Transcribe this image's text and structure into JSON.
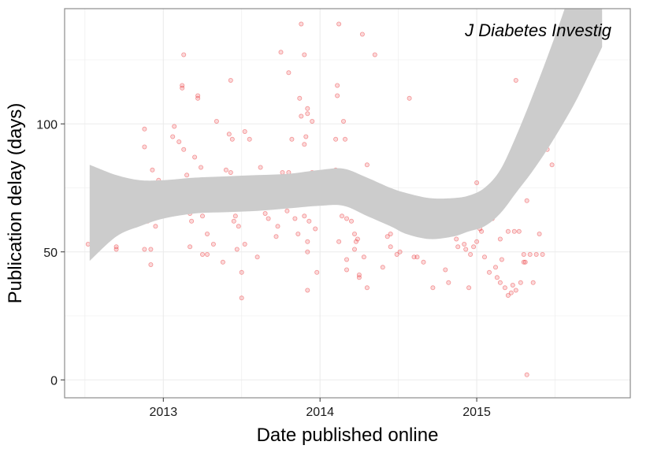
{
  "chart_data": {
    "type": "scatter",
    "annotation": "J Diabetes Investig",
    "xlabel": "Date published online",
    "ylabel": "Publication delay (days)",
    "xlim": [
      2012.37,
      2015.98
    ],
    "ylim": [
      -7,
      145
    ],
    "x_ticks": [
      {
        "value": 2013,
        "label": "2013"
      },
      {
        "value": 2014,
        "label": "2014"
      },
      {
        "value": 2015,
        "label": "2015"
      }
    ],
    "y_ticks": [
      {
        "value": 0,
        "label": "0"
      },
      {
        "value": 50,
        "label": "50"
      },
      {
        "value": 100,
        "label": "100"
      }
    ],
    "grid": true,
    "colors": {
      "points": "#e8272a",
      "ribbon": "#cccccc",
      "grid": "#ebebeb",
      "panel_border": "#8c8c8c"
    },
    "series": [
      {
        "type": "scatter",
        "points": [
          [
            2012.52,
            53
          ],
          [
            2012.55,
            56
          ],
          [
            2012.58,
            59
          ],
          [
            2012.6,
            68
          ],
          [
            2012.64,
            57
          ],
          [
            2012.65,
            62
          ],
          [
            2012.67,
            63
          ],
          [
            2012.7,
            52
          ],
          [
            2012.7,
            51
          ],
          [
            2012.72,
            75
          ],
          [
            2012.76,
            60
          ],
          [
            2012.79,
            68
          ],
          [
            2012.63,
            78
          ],
          [
            2012.66,
            79
          ],
          [
            2012.83,
            77
          ],
          [
            2012.85,
            75
          ],
          [
            2012.88,
            75
          ],
          [
            2012.88,
            91
          ],
          [
            2012.88,
            98
          ],
          [
            2012.9,
            76
          ],
          [
            2012.9,
            62
          ],
          [
            2012.88,
            51
          ],
          [
            2012.92,
            51
          ],
          [
            2012.92,
            45
          ],
          [
            2012.93,
            82
          ],
          [
            2012.95,
            60
          ],
          [
            2012.97,
            78
          ],
          [
            2012.97,
            70
          ],
          [
            2013.06,
            95
          ],
          [
            2013.07,
            99
          ],
          [
            2013.1,
            93
          ],
          [
            2013.12,
            115
          ],
          [
            2013.12,
            114
          ],
          [
            2013.13,
            90
          ],
          [
            2013.13,
            127
          ],
          [
            2013.15,
            80
          ],
          [
            2013.15,
            72
          ],
          [
            2013.15,
            70
          ],
          [
            2013.17,
            65
          ],
          [
            2013.17,
            52
          ],
          [
            2013.18,
            62
          ],
          [
            2013.2,
            87
          ],
          [
            2013.22,
            111
          ],
          [
            2013.22,
            110
          ],
          [
            2013.24,
            83
          ],
          [
            2013.25,
            64
          ],
          [
            2013.25,
            49
          ],
          [
            2013.28,
            57
          ],
          [
            2013.28,
            49
          ],
          [
            2013.3,
            74
          ],
          [
            2013.32,
            53
          ],
          [
            2013.33,
            73
          ],
          [
            2013.34,
            101
          ],
          [
            2013.35,
            78
          ],
          [
            2013.36,
            67
          ],
          [
            2013.38,
            75
          ],
          [
            2013.38,
            46
          ],
          [
            2013.4,
            82
          ],
          [
            2013.42,
            96
          ],
          [
            2013.42,
            69
          ],
          [
            2013.43,
            117
          ],
          [
            2013.43,
            81
          ],
          [
            2013.44,
            94
          ],
          [
            2013.45,
            74
          ],
          [
            2013.45,
            62
          ],
          [
            2013.46,
            64
          ],
          [
            2013.47,
            51
          ],
          [
            2013.48,
            60
          ],
          [
            2013.5,
            42
          ],
          [
            2013.5,
            32
          ],
          [
            2013.52,
            97
          ],
          [
            2013.52,
            53
          ],
          [
            2013.55,
            94
          ],
          [
            2013.57,
            76
          ],
          [
            2013.58,
            67
          ],
          [
            2013.6,
            48
          ],
          [
            2013.62,
            83
          ],
          [
            2013.65,
            65
          ],
          [
            2013.67,
            63
          ],
          [
            2013.68,
            70
          ],
          [
            2013.72,
            56
          ],
          [
            2013.73,
            60
          ],
          [
            2013.74,
            77
          ],
          [
            2013.75,
            128
          ],
          [
            2013.76,
            81
          ],
          [
            2013.77,
            72
          ],
          [
            2013.79,
            66
          ],
          [
            2013.8,
            120
          ],
          [
            2013.8,
            81
          ],
          [
            2013.82,
            94
          ],
          [
            2013.84,
            63
          ],
          [
            2013.86,
            57
          ],
          [
            2013.87,
            110
          ],
          [
            2013.88,
            139
          ],
          [
            2013.88,
            103
          ],
          [
            2013.9,
            127
          ],
          [
            2013.9,
            92
          ],
          [
            2013.9,
            70
          ],
          [
            2013.9,
            64
          ],
          [
            2013.91,
            95
          ],
          [
            2013.92,
            106
          ],
          [
            2013.92,
            104
          ],
          [
            2013.92,
            54
          ],
          [
            2013.92,
            50
          ],
          [
            2013.92,
            35
          ],
          [
            2013.93,
            62
          ],
          [
            2013.95,
            101
          ],
          [
            2013.95,
            81
          ],
          [
            2013.97,
            59
          ],
          [
            2013.98,
            42
          ],
          [
            2014.1,
            94
          ],
          [
            2014.1,
            82
          ],
          [
            2014.11,
            111
          ],
          [
            2014.11,
            115
          ],
          [
            2014.12,
            139
          ],
          [
            2014.12,
            54
          ],
          [
            2014.14,
            73
          ],
          [
            2014.14,
            64
          ],
          [
            2014.15,
            101
          ],
          [
            2014.16,
            94
          ],
          [
            2014.17,
            63
          ],
          [
            2014.17,
            47
          ],
          [
            2014.17,
            43
          ],
          [
            2014.2,
            73
          ],
          [
            2014.2,
            62
          ],
          [
            2014.22,
            57
          ],
          [
            2014.22,
            51
          ],
          [
            2014.23,
            54
          ],
          [
            2014.24,
            55
          ],
          [
            2014.25,
            41
          ],
          [
            2014.25,
            40
          ],
          [
            2014.27,
            135
          ],
          [
            2014.28,
            48
          ],
          [
            2014.3,
            84
          ],
          [
            2014.3,
            36
          ],
          [
            2014.35,
            127
          ],
          [
            2014.37,
            72
          ],
          [
            2014.37,
            67
          ],
          [
            2014.4,
            44
          ],
          [
            2014.42,
            69
          ],
          [
            2014.43,
            56
          ],
          [
            2014.45,
            57
          ],
          [
            2014.45,
            52
          ],
          [
            2014.47,
            64
          ],
          [
            2014.49,
            49
          ],
          [
            2014.51,
            50
          ],
          [
            2014.53,
            62
          ],
          [
            2014.55,
            60
          ],
          [
            2014.57,
            110
          ],
          [
            2014.6,
            48
          ],
          [
            2014.62,
            48
          ],
          [
            2014.66,
            46
          ],
          [
            2014.72,
            36
          ],
          [
            2014.8,
            43
          ],
          [
            2014.82,
            38
          ],
          [
            2014.87,
            55
          ],
          [
            2014.88,
            52
          ],
          [
            2014.9,
            58
          ],
          [
            2014.92,
            53
          ],
          [
            2014.93,
            51
          ],
          [
            2014.95,
            60
          ],
          [
            2014.95,
            36
          ],
          [
            2014.96,
            64
          ],
          [
            2014.96,
            49
          ],
          [
            2014.98,
            52
          ],
          [
            2015.0,
            77
          ],
          [
            2015.0,
            54
          ],
          [
            2015.02,
            65
          ],
          [
            2015.02,
            62
          ],
          [
            2015.02,
            59
          ],
          [
            2015.03,
            58
          ],
          [
            2015.05,
            48
          ],
          [
            2015.05,
            63
          ],
          [
            2015.08,
            42
          ],
          [
            2015.1,
            63
          ],
          [
            2015.12,
            44
          ],
          [
            2015.13,
            40
          ],
          [
            2015.15,
            38
          ],
          [
            2015.15,
            55
          ],
          [
            2015.16,
            47
          ],
          [
            2015.18,
            36
          ],
          [
            2015.2,
            58
          ],
          [
            2015.2,
            33
          ],
          [
            2015.22,
            34
          ],
          [
            2015.23,
            37
          ],
          [
            2015.24,
            58
          ],
          [
            2015.25,
            117
          ],
          [
            2015.25,
            35
          ],
          [
            2015.27,
            58
          ],
          [
            2015.28,
            38
          ],
          [
            2015.3,
            49
          ],
          [
            2015.3,
            46
          ],
          [
            2015.31,
            46
          ],
          [
            2015.32,
            70
          ],
          [
            2015.32,
            2
          ],
          [
            2015.34,
            49
          ],
          [
            2015.36,
            38
          ],
          [
            2015.38,
            49
          ],
          [
            2015.4,
            57
          ],
          [
            2015.42,
            49
          ],
          [
            2015.45,
            90
          ],
          [
            2015.48,
            84
          ]
        ]
      },
      {
        "type": "area",
        "name": "",
        "x": [
          2012.53,
          2012.7,
          2012.85,
          2013.0,
          2013.2,
          2013.4,
          2013.6,
          2013.8,
          2014.0,
          2014.15,
          2014.3,
          2014.45,
          2014.55,
          2014.7,
          2014.85,
          2014.95,
          2015.05,
          2015.15,
          2015.25,
          2015.35,
          2015.45,
          2015.55,
          2015.65,
          2015.8
        ],
        "upper": [
          84,
          80,
          78,
          78,
          79,
          79.5,
          80,
          80.5,
          82,
          82.5,
          79,
          75,
          73,
          71,
          71,
          72,
          75,
          82,
          95,
          110,
          126,
          143,
          162,
          200
        ],
        "lower": [
          46.5,
          56,
          60,
          63,
          65,
          65.5,
          66,
          67,
          68,
          68,
          64,
          60,
          57,
          55,
          56,
          58,
          60,
          65,
          73,
          81,
          90,
          100,
          111,
          130
        ]
      }
    ]
  }
}
